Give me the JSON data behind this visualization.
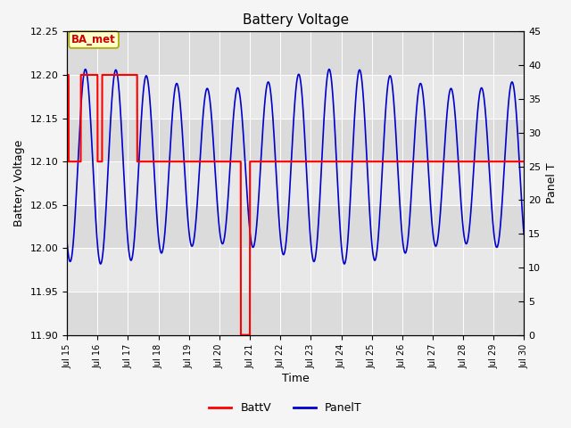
{
  "title": "Battery Voltage",
  "xlabel": "Time",
  "ylabel_left": "Battery Voltage",
  "ylabel_right": "Panel T",
  "ylim_left": [
    11.9,
    12.25
  ],
  "ylim_right": [
    0,
    45
  ],
  "yticks_left": [
    11.9,
    11.95,
    12.0,
    12.05,
    12.1,
    12.15,
    12.2,
    12.25
  ],
  "yticks_right": [
    0,
    5,
    10,
    15,
    20,
    25,
    30,
    35,
    40,
    45
  ],
  "fig_bg_color": "#f5f5f5",
  "plot_bg_color": "#e8e8e8",
  "grid_band_color": "#d8d8d8",
  "annotation_box_color": "#ffffcc",
  "annotation_text_color": "#cc0000",
  "annotation_border_color": "#aaa800",
  "annotation_text": "BA_met",
  "battv_color": "#ff0000",
  "panelt_color": "#0000cc",
  "legend_battv": "BattV",
  "legend_panelt": "PanelT",
  "title_fontsize": 11,
  "axis_fontsize": 9,
  "tick_fontsize": 8
}
